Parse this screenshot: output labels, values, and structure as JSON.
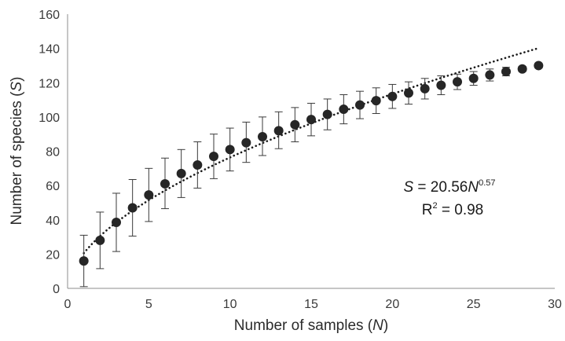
{
  "chart_data": {
    "type": "scatter",
    "xlabel": {
      "text": "Number of samples (",
      "var": "N",
      "close": ")"
    },
    "ylabel": {
      "text": "Number of species (",
      "var": "S",
      "close": ")"
    },
    "xlim": [
      0,
      30
    ],
    "ylim": [
      0,
      160
    ],
    "x_ticks": [
      0,
      5,
      10,
      15,
      20,
      25,
      30
    ],
    "y_ticks": [
      0,
      20,
      40,
      60,
      80,
      100,
      120,
      140,
      160
    ],
    "grid": false,
    "series": [
      {
        "marker": "circle",
        "color": "#262626",
        "x": [
          1,
          2,
          3,
          4,
          5,
          6,
          7,
          8,
          9,
          10,
          11,
          12,
          13,
          14,
          15,
          16,
          17,
          18,
          19,
          20,
          21,
          22,
          23,
          24,
          25,
          26,
          27,
          28,
          29
        ],
        "y": [
          16,
          28,
          38.5,
          47,
          54.5,
          61,
          67,
          72,
          77,
          81,
          85,
          88.5,
          92,
          95.5,
          98.5,
          101.5,
          104.5,
          107,
          109.5,
          112,
          114,
          116.5,
          118.5,
          120.5,
          122.5,
          124.5,
          126.5,
          128,
          130
        ],
        "err_low": [
          15,
          16.5,
          17,
          16.5,
          15.5,
          14.5,
          14,
          13.5,
          13,
          12.5,
          11.5,
          11,
          10.5,
          10,
          9.5,
          9,
          8.5,
          8,
          7.5,
          7,
          6.5,
          6,
          5.5,
          4.5,
          4,
          3.5,
          2.5,
          1.5,
          0.5
        ],
        "err_high": [
          15,
          16.5,
          17,
          16.5,
          15.5,
          15,
          14,
          13.5,
          13,
          12.5,
          12,
          11.5,
          11,
          10,
          9.5,
          9,
          8.5,
          8,
          7.5,
          7,
          6.5,
          6,
          5.5,
          4.5,
          4,
          3.5,
          2.5,
          1.5,
          0.5
        ]
      }
    ],
    "trendline": {
      "style": "dotted",
      "color": "#1a1a1a",
      "model": "power",
      "coef": 20.56,
      "exponent": 0.57,
      "x_range": [
        1,
        29
      ]
    },
    "annotation": {
      "lhs": "S",
      "eq_text": " = 20.56",
      "var": "N",
      "exp": "0.57",
      "r2_base": "R",
      "r2_sup": "2",
      "r2_text": " = 0.98"
    }
  }
}
